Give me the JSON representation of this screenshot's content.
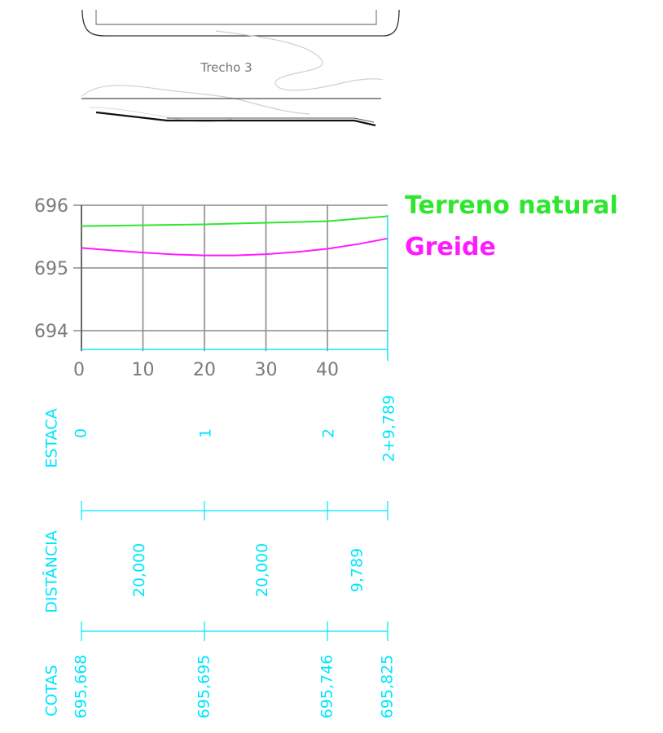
{
  "plan_view": {
    "section_label": "Trecho 3"
  },
  "legend": {
    "items": [
      {
        "label": "Terreno natural",
        "color": "#2ee62e"
      },
      {
        "label": "Greide",
        "color": "#ff1aff"
      }
    ]
  },
  "colors": {
    "cad_cyan": "#00e5ff",
    "grid_gray": "#8a8a8a",
    "tick_gray": "#7a7a7a"
  },
  "chart_data": {
    "type": "line",
    "title": "",
    "xlabel": "",
    "ylabel": "",
    "xlim": [
      0,
      49.789
    ],
    "ylim": [
      693.7,
      696
    ],
    "x_ticks": [
      "0",
      "10",
      "20",
      "30",
      "40"
    ],
    "y_ticks": [
      "696",
      "695",
      "694"
    ],
    "grid": true,
    "series": [
      {
        "name": "Terreno natural",
        "color": "#2ee62e",
        "points": [
          [
            0,
            695.668
          ],
          [
            20,
            695.695
          ],
          [
            40,
            695.746
          ],
          [
            49.789,
            695.825
          ]
        ]
      },
      {
        "name": "Greide",
        "color": "#ff1aff",
        "points": [
          [
            0,
            695.32
          ],
          [
            5,
            695.28
          ],
          [
            10,
            695.245
          ],
          [
            15,
            695.215
          ],
          [
            20,
            695.2
          ],
          [
            25,
            695.2
          ],
          [
            30,
            695.22
          ],
          [
            35,
            695.255
          ],
          [
            40,
            695.305
          ],
          [
            45,
            695.38
          ],
          [
            49.789,
            695.47
          ]
        ]
      }
    ]
  },
  "profile_table": {
    "estaca": {
      "label": "ESTACA",
      "entries": [
        {
          "x": 0,
          "value": "0"
        },
        {
          "x": 20,
          "value": "1"
        },
        {
          "x": 40,
          "value": "2"
        },
        {
          "x": 49.789,
          "value": "2+9,789"
        }
      ]
    },
    "distancia": {
      "label": "DISTÂNCIA",
      "ticks": [
        0,
        20,
        40,
        49.789
      ],
      "segments": [
        {
          "x_start": 0,
          "x_end": 20,
          "value": "20,000"
        },
        {
          "x_start": 20,
          "x_end": 40,
          "value": "20,000"
        },
        {
          "x_start": 40,
          "x_end": 49.789,
          "value": "9,789"
        }
      ]
    },
    "cotas": {
      "label": "COTAS",
      "ticks": [
        0,
        20,
        40,
        49.789
      ],
      "entries": [
        {
          "x": 0,
          "value": "695,668"
        },
        {
          "x": 20,
          "value": "695,695"
        },
        {
          "x": 40,
          "value": "695,746"
        },
        {
          "x": 49.789,
          "value": "695,825"
        }
      ]
    }
  }
}
